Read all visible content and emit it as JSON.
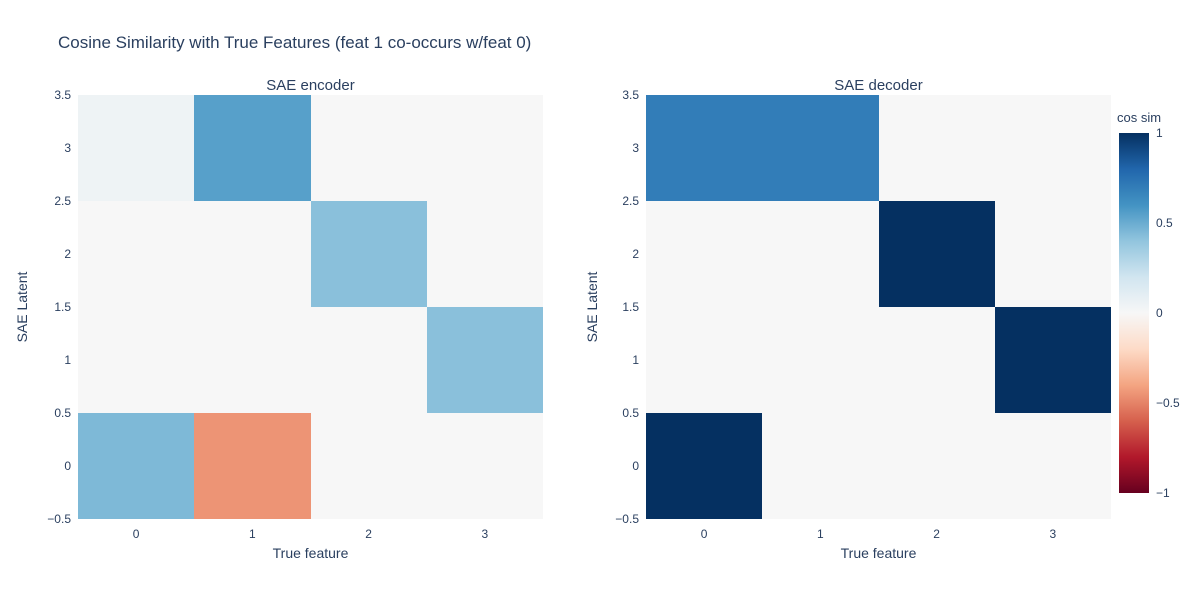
{
  "figure": {
    "title": "Cosine Similarity with True Features (feat 1 co-occurs w/feat 0)",
    "background_color": "#ffffff",
    "text_color": "#2a3f5f"
  },
  "chart_data": [
    {
      "type": "heatmap",
      "title": "SAE encoder",
      "xlabel": "True feature",
      "ylabel": "SAE Latent",
      "x": [
        0,
        1,
        2,
        3
      ],
      "y": [
        0,
        1,
        2,
        3
      ],
      "x_tick_labels": [
        "0",
        "1",
        "2",
        "3"
      ],
      "y_tick_labels_top_to_bottom": [
        "3.5",
        "3",
        "2.5",
        "2",
        "1.5",
        "1",
        "0.5",
        "0",
        "−0.5"
      ],
      "xlim": [
        -0.5,
        3.5
      ],
      "ylim": [
        -0.5,
        3.5
      ],
      "z_rows_y0_to_y3": [
        [
          0.45,
          -0.45,
          0,
          0
        ],
        [
          0,
          0,
          0,
          0.42
        ],
        [
          0,
          0,
          0.42,
          0
        ],
        [
          0.05,
          0.55,
          0,
          0
        ]
      ],
      "zmin": -1,
      "zmax": 1
    },
    {
      "type": "heatmap",
      "title": "SAE decoder",
      "xlabel": "True feature",
      "ylabel": "SAE Latent",
      "x": [
        0,
        1,
        2,
        3
      ],
      "y": [
        0,
        1,
        2,
        3
      ],
      "x_tick_labels": [
        "0",
        "1",
        "2",
        "3"
      ],
      "y_tick_labels_top_to_bottom": [
        "3.5",
        "3",
        "2.5",
        "2",
        "1.5",
        "1",
        "0.5",
        "0",
        "−0.5"
      ],
      "xlim": [
        -0.5,
        3.5
      ],
      "ylim": [
        -0.5,
        3.5
      ],
      "z_rows_y0_to_y3": [
        [
          1.0,
          0,
          0,
          0
        ],
        [
          0,
          0,
          0,
          1.0
        ],
        [
          0,
          0,
          1.0,
          0
        ],
        [
          0.7,
          0.7,
          0,
          0
        ]
      ],
      "zmin": -1,
      "zmax": 1
    }
  ],
  "colorbar": {
    "title": "cos sim",
    "tick_labels_top_to_bottom": [
      "1",
      "0.5",
      "0",
      "−0.5",
      "−1"
    ],
    "colorscale_name": "RdBu (red = −1, blue = +1)",
    "stops": [
      {
        "f": 0.0,
        "color": "#67001f"
      },
      {
        "f": 0.1,
        "color": "#b2182b"
      },
      {
        "f": 0.2,
        "color": "#d6604d"
      },
      {
        "f": 0.3,
        "color": "#f4a582"
      },
      {
        "f": 0.4,
        "color": "#fddbc7"
      },
      {
        "f": 0.5,
        "color": "#f7f7f7"
      },
      {
        "f": 0.6,
        "color": "#d1e5f0"
      },
      {
        "f": 0.7,
        "color": "#92c5de"
      },
      {
        "f": 0.8,
        "color": "#4393c3"
      },
      {
        "f": 0.9,
        "color": "#2166ac"
      },
      {
        "f": 1.0,
        "color": "#053061"
      }
    ]
  }
}
